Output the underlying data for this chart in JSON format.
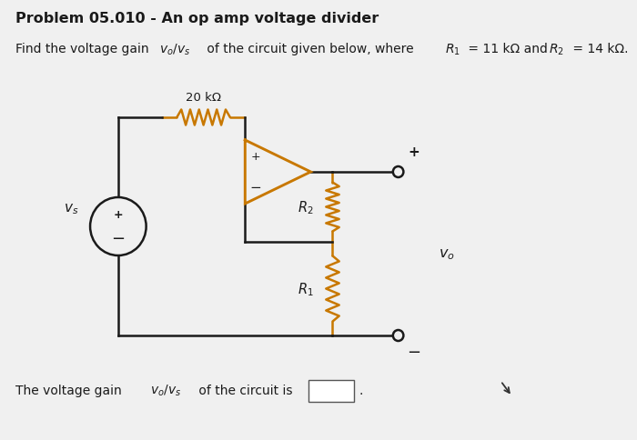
{
  "title": "Problem 05.010 - An op amp voltage divider",
  "subtitle_plain": "Find the voltage gain v₀/vₛ of the circuit given below, where R₁ = 11 kΩ and R₂ = 14 kΩ.",
  "footer_plain": "The voltage gain v₀/vₛ of the circuit is",
  "resistor_label_20k": "20 kΩ",
  "resistor_label_R2": "R₂",
  "resistor_label_R1": "R₁",
  "vs_label": "vₛ",
  "vo_label": "v₀",
  "bg_color": "#f0f0f0",
  "wire_color": "#1a1a1a",
  "resistor_color": "#c87800",
  "opamp_color": "#c87800",
  "title_fontsize": 11.5,
  "subtitle_fontsize": 10,
  "footer_fontsize": 10
}
